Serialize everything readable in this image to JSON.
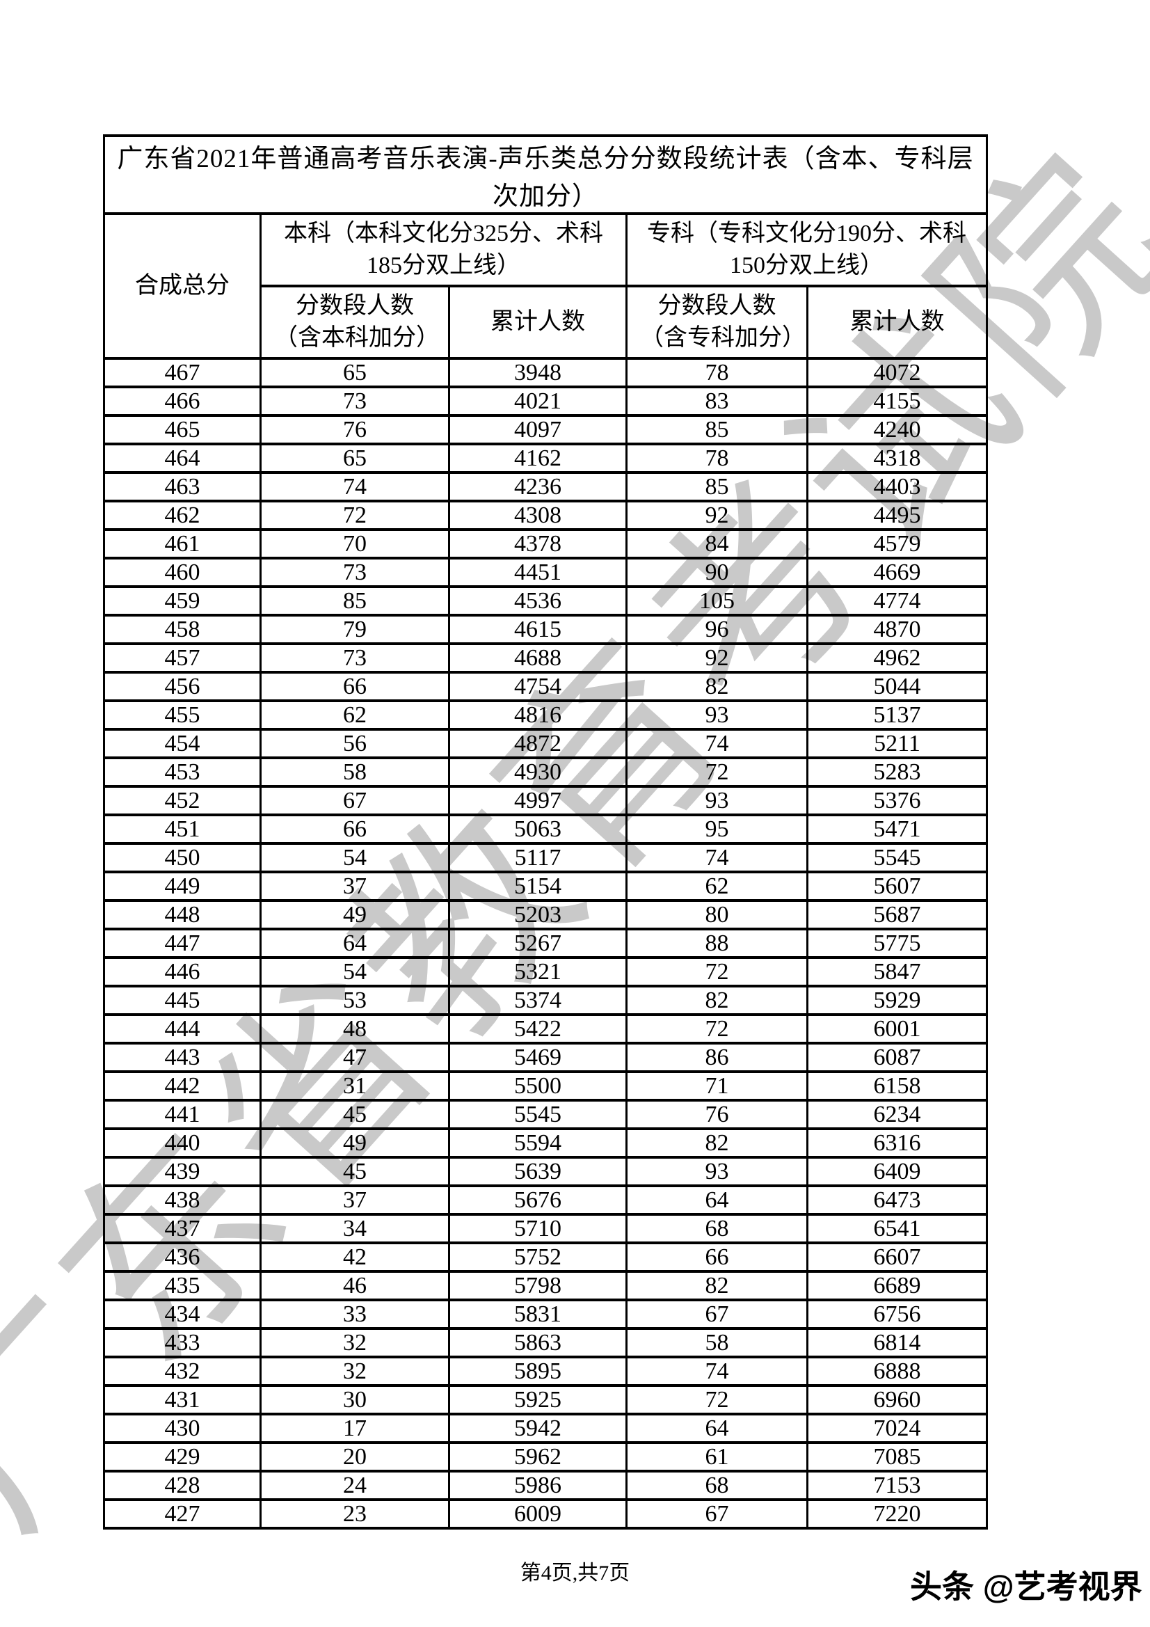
{
  "watermark": {
    "text": "广东省教育考试院",
    "color": "#c9c9c9"
  },
  "table": {
    "title": "广东省2021年普通高考音乐表演-声乐类总分分数段统计表（含本、专科层次加分）",
    "columns": {
      "total": "合成总分",
      "benke_group": "本科（本科文化分325分、术科185分双上线）",
      "zhuanke_group": "专科（专科文化分190分、术科150分双上线）",
      "benke_segment": "分数段人数（含本科加分）",
      "benke_cumulative": "累计人数",
      "zhuanke_segment": "分数段人数（含专科加分）",
      "zhuanke_cumulative": "累计人数"
    },
    "rows": [
      [
        467,
        65,
        3948,
        78,
        4072
      ],
      [
        466,
        73,
        4021,
        83,
        4155
      ],
      [
        465,
        76,
        4097,
        85,
        4240
      ],
      [
        464,
        65,
        4162,
        78,
        4318
      ],
      [
        463,
        74,
        4236,
        85,
        4403
      ],
      [
        462,
        72,
        4308,
        92,
        4495
      ],
      [
        461,
        70,
        4378,
        84,
        4579
      ],
      [
        460,
        73,
        4451,
        90,
        4669
      ],
      [
        459,
        85,
        4536,
        105,
        4774
      ],
      [
        458,
        79,
        4615,
        96,
        4870
      ],
      [
        457,
        73,
        4688,
        92,
        4962
      ],
      [
        456,
        66,
        4754,
        82,
        5044
      ],
      [
        455,
        62,
        4816,
        93,
        5137
      ],
      [
        454,
        56,
        4872,
        74,
        5211
      ],
      [
        453,
        58,
        4930,
        72,
        5283
      ],
      [
        452,
        67,
        4997,
        93,
        5376
      ],
      [
        451,
        66,
        5063,
        95,
        5471
      ],
      [
        450,
        54,
        5117,
        74,
        5545
      ],
      [
        449,
        37,
        5154,
        62,
        5607
      ],
      [
        448,
        49,
        5203,
        80,
        5687
      ],
      [
        447,
        64,
        5267,
        88,
        5775
      ],
      [
        446,
        54,
        5321,
        72,
        5847
      ],
      [
        445,
        53,
        5374,
        82,
        5929
      ],
      [
        444,
        48,
        5422,
        72,
        6001
      ],
      [
        443,
        47,
        5469,
        86,
        6087
      ],
      [
        442,
        31,
        5500,
        71,
        6158
      ],
      [
        441,
        45,
        5545,
        76,
        6234
      ],
      [
        440,
        49,
        5594,
        82,
        6316
      ],
      [
        439,
        45,
        5639,
        93,
        6409
      ],
      [
        438,
        37,
        5676,
        64,
        6473
      ],
      [
        437,
        34,
        5710,
        68,
        6541
      ],
      [
        436,
        42,
        5752,
        66,
        6607
      ],
      [
        435,
        46,
        5798,
        82,
        6689
      ],
      [
        434,
        33,
        5831,
        67,
        6756
      ],
      [
        433,
        32,
        5863,
        58,
        6814
      ],
      [
        432,
        32,
        5895,
        74,
        6888
      ],
      [
        431,
        30,
        5925,
        72,
        6960
      ],
      [
        430,
        17,
        5942,
        64,
        7024
      ],
      [
        429,
        20,
        5962,
        61,
        7085
      ],
      [
        428,
        24,
        5986,
        68,
        7153
      ],
      [
        427,
        23,
        6009,
        67,
        7220
      ]
    ]
  },
  "footer": {
    "page_text": "第4页,共7页",
    "logo_text": "头条 @艺考视界"
  }
}
